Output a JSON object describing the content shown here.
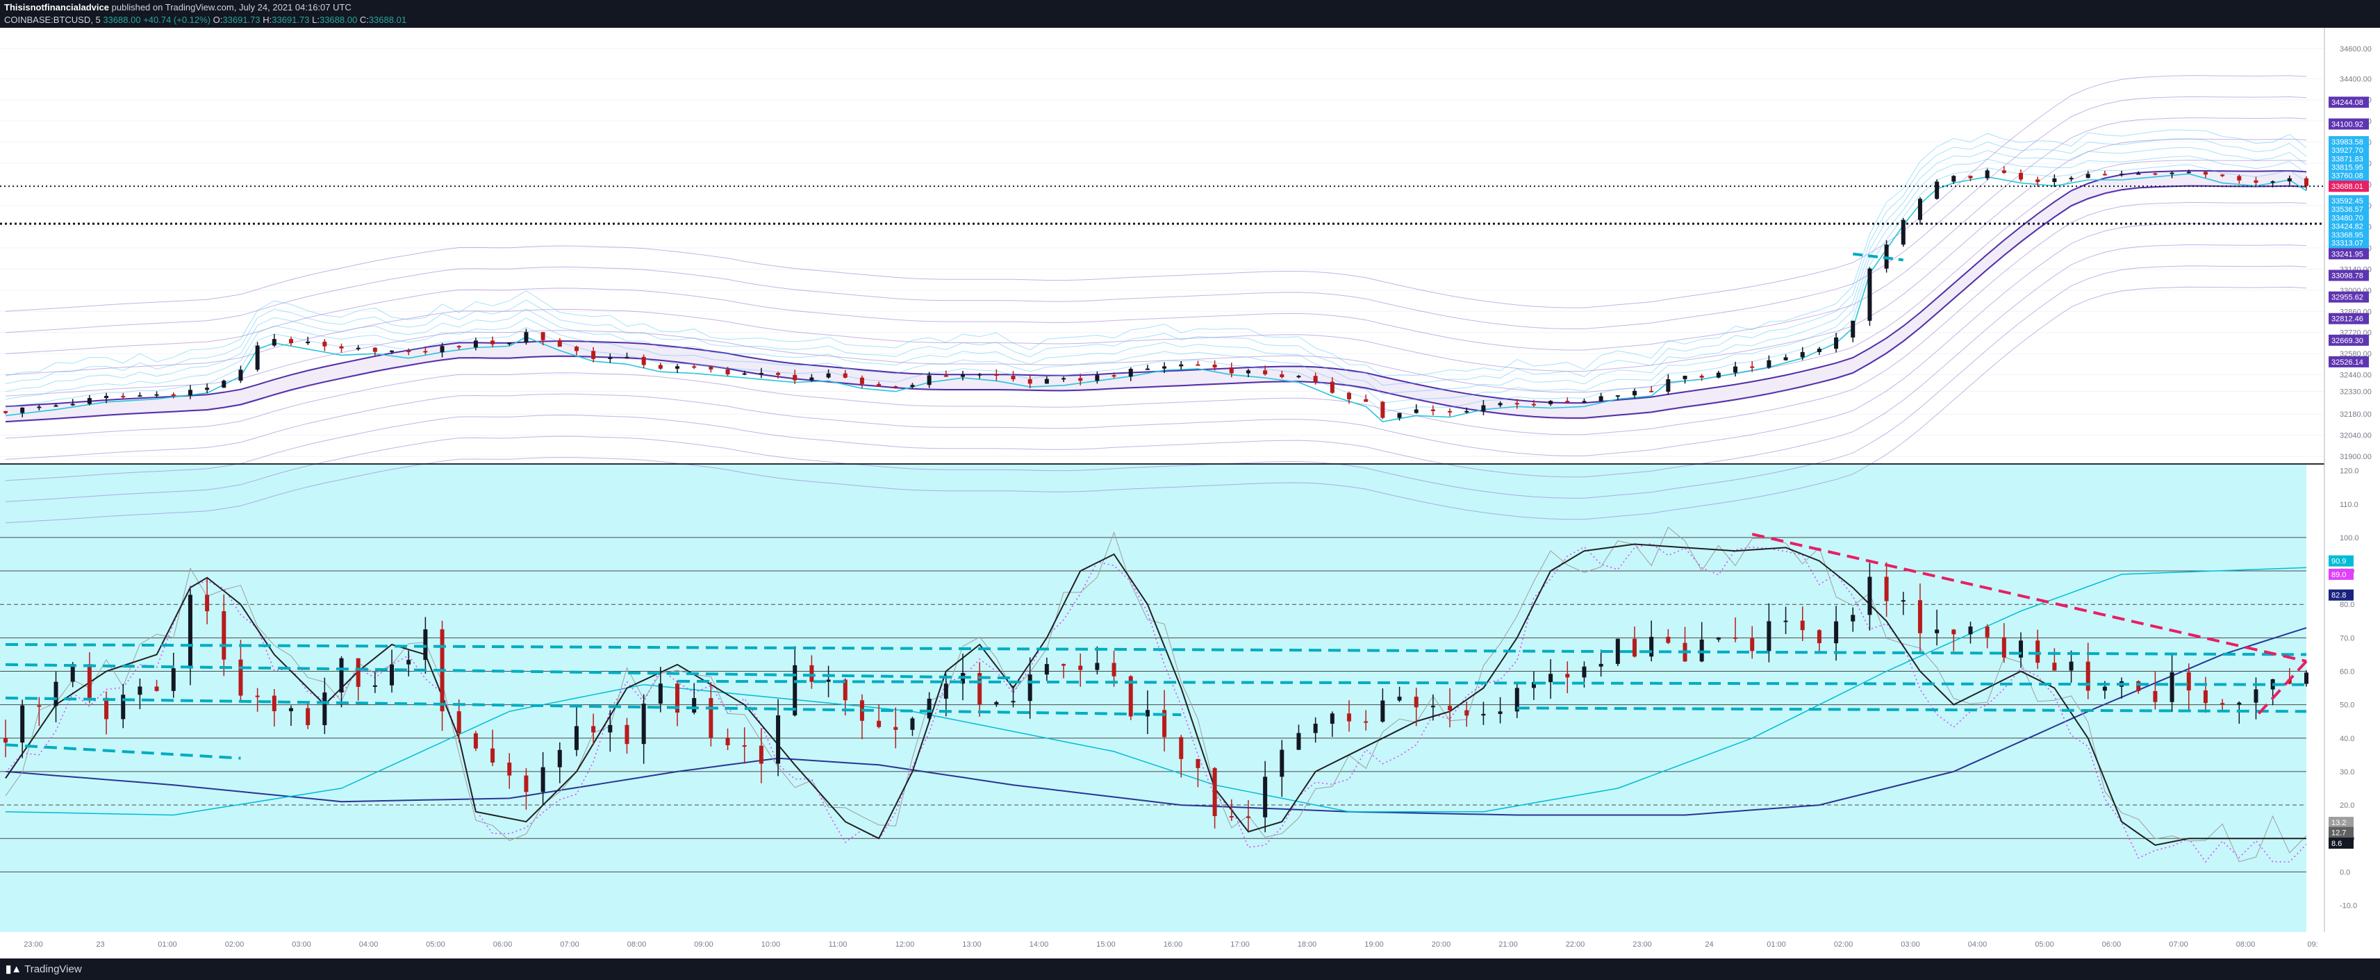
{
  "header": {
    "author": "Thisisnotfinancialadvice",
    "published": "published on TradingView.com, July 24, 2021 04:16:07 UTC",
    "symbol": "COINBASE:BTCUSD, 5",
    "ohlc": [
      {
        "label": "",
        "value": "33688.00"
      },
      {
        "label": "",
        "value": "+40.74 (+0.12%)"
      },
      {
        "label": "O:",
        "value": "33691.73"
      },
      {
        "label": "H:",
        "value": "33691.73"
      },
      {
        "label": "L:",
        "value": "33688.00"
      },
      {
        "label": "C:",
        "value": "33688.01"
      }
    ]
  },
  "footer": {
    "logo": "TradingView"
  },
  "colors": {
    "background": "#ffffff",
    "oscillator_bg": "#c6f7fb",
    "candle_up": "#131722",
    "candle_down": "#b71c1c",
    "price_badge": "#e91e63",
    "band_purple": "#7e57c2",
    "band_blue": "#4fc3f7",
    "trend_cyan": "#00acc1",
    "trend_pink": "#e91e63"
  },
  "chart_data": [
    {
      "type": "candlestick",
      "title": "COINBASE:BTCUSD, 5",
      "ylim": [
        31850,
        34700
      ],
      "y_ticks": [
        "34600.00",
        "34400.00",
        "34260.00",
        "34120.00",
        "33980.00",
        "33840.00",
        "33700.00",
        "33560.00",
        "33420.00",
        "33280.00",
        "33140.00",
        "33000.00",
        "32860.00",
        "32720.00",
        "32580.00",
        "32440.00",
        "32330.00",
        "32180.00",
        "32040.00",
        "31900.00"
      ],
      "x_ticks": [
        "23:00",
        "23",
        "01:00",
        "02:00",
        "03:00",
        "04:00",
        "05:00",
        "06:00",
        "07:00",
        "08:00",
        "09:00",
        "10:00",
        "11:00",
        "12:00",
        "13:00",
        "14:00",
        "15:00",
        "16:00",
        "17:00",
        "18:00",
        "19:00",
        "20:00",
        "21:00",
        "22:00",
        "23:00",
        "24",
        "01:00",
        "02:00",
        "03:00",
        "04:00",
        "05:00",
        "06:00",
        "07:00",
        "08:00",
        "09:"
      ],
      "close_path": [
        [
          0,
          32200
        ],
        [
          3,
          32240
        ],
        [
          6,
          32290
        ],
        [
          9,
          32310
        ],
        [
          12,
          32350
        ],
        [
          14,
          32460
        ],
        [
          15,
          32640
        ],
        [
          16,
          32680
        ],
        [
          18,
          32640
        ],
        [
          20,
          32600
        ],
        [
          22,
          32610
        ],
        [
          24,
          32580
        ],
        [
          26,
          32620
        ],
        [
          28,
          32650
        ],
        [
          30,
          32660
        ],
        [
          31,
          32720
        ],
        [
          33,
          32630
        ],
        [
          35,
          32560
        ],
        [
          37,
          32540
        ],
        [
          39,
          32490
        ],
        [
          41,
          32480
        ],
        [
          43,
          32460
        ],
        [
          45,
          32440
        ],
        [
          47,
          32420
        ],
        [
          49,
          32430
        ],
        [
          51,
          32380
        ],
        [
          53,
          32360
        ],
        [
          55,
          32420
        ],
        [
          57,
          32450
        ],
        [
          59,
          32430
        ],
        [
          61,
          32390
        ],
        [
          63,
          32400
        ],
        [
          65,
          32430
        ],
        [
          67,
          32460
        ],
        [
          69,
          32500
        ],
        [
          71,
          32510
        ],
        [
          73,
          32470
        ],
        [
          75,
          32450
        ],
        [
          77,
          32420
        ],
        [
          79,
          32330
        ],
        [
          81,
          32260
        ],
        [
          82,
          32160
        ],
        [
          84,
          32200
        ],
        [
          86,
          32190
        ],
        [
          88,
          32240
        ],
        [
          90,
          32260
        ],
        [
          92,
          32250
        ],
        [
          94,
          32260
        ],
        [
          96,
          32310
        ],
        [
          98,
          32330
        ],
        [
          99,
          32420
        ],
        [
          101,
          32440
        ],
        [
          103,
          32480
        ],
        [
          105,
          32520
        ],
        [
          107,
          32580
        ],
        [
          109,
          32680
        ],
        [
          110,
          32780
        ],
        [
          111,
          33140
        ],
        [
          112,
          33300
        ],
        [
          113,
          33460
        ],
        [
          114,
          33600
        ],
        [
          115,
          33700
        ],
        [
          116,
          33740
        ],
        [
          118,
          33780
        ],
        [
          120,
          33740
        ],
        [
          122,
          33720
        ],
        [
          124,
          33760
        ],
        [
          126,
          33760
        ],
        [
          128,
          33780
        ],
        [
          130,
          33800
        ],
        [
          132,
          33740
        ],
        [
          134,
          33720
        ],
        [
          136,
          33760
        ],
        [
          137,
          33688
        ]
      ],
      "markers": {
        "current_price": 33688.01,
        "current_label": "BTCUSD",
        "support_level": 33440
      },
      "right_labels": [
        {
          "value": "34244.08",
          "price": 34244,
          "color": "#5e35b1"
        },
        {
          "value": "34100.92",
          "price": 34100,
          "color": "#5e35b1"
        },
        {
          "value": "33983.58",
          "price": 33983,
          "color": "#29b6f6"
        },
        {
          "value": "33927.70",
          "price": 33927,
          "color": "#29b6f6"
        },
        {
          "value": "33871.83",
          "price": 33871,
          "color": "#29b6f6"
        },
        {
          "value": "33815.95",
          "price": 33815,
          "color": "#29b6f6"
        },
        {
          "value": "33760.08",
          "price": 33760,
          "color": "#29b6f6"
        },
        {
          "value": "33688.01",
          "price": 33688,
          "color": "#e91e63"
        },
        {
          "value": "33592.45",
          "price": 33592,
          "color": "#29b6f6"
        },
        {
          "value": "33536.57",
          "price": 33536,
          "color": "#29b6f6"
        },
        {
          "value": "33480.70",
          "price": 33480,
          "color": "#29b6f6"
        },
        {
          "value": "33424.82",
          "price": 33424,
          "color": "#29b6f6"
        },
        {
          "value": "33368.95",
          "price": 33368,
          "color": "#29b6f6"
        },
        {
          "value": "33313.07",
          "price": 33313,
          "color": "#29b6f6"
        },
        {
          "value": "33241.95",
          "price": 33241,
          "color": "#5e35b1"
        },
        {
          "value": "33098.78",
          "price": 33098,
          "color": "#5e35b1"
        },
        {
          "value": "32955.62",
          "price": 32955,
          "color": "#5e35b1"
        },
        {
          "value": "32812.46",
          "price": 32812,
          "color": "#5e35b1"
        },
        {
          "value": "32669.30",
          "price": 32669,
          "color": "#5e35b1"
        },
        {
          "value": "32526.14",
          "price": 32526,
          "color": "#5e35b1"
        }
      ]
    },
    {
      "type": "line",
      "title": "",
      "ylim": [
        -18,
        122
      ],
      "y_ticks": [
        "120.0",
        "110.0",
        "100.0",
        "90.0",
        "80.0",
        "70.0",
        "60.0",
        "50.0",
        "40.0",
        "30.0",
        "20.0",
        "10.0",
        "0.0",
        "-10.0"
      ],
      "hlines": [
        100,
        90,
        80,
        70,
        60,
        50,
        40,
        30,
        20,
        10,
        0
      ],
      "rsi_path": [
        [
          0,
          40
        ],
        [
          2,
          52
        ],
        [
          4,
          66
        ],
        [
          6,
          45
        ],
        [
          8,
          55
        ],
        [
          10,
          60
        ],
        [
          11,
          85
        ],
        [
          12,
          78
        ],
        [
          14,
          55
        ],
        [
          16,
          48
        ],
        [
          18,
          42
        ],
        [
          20,
          60
        ],
        [
          22,
          55
        ],
        [
          24,
          62
        ],
        [
          25,
          70
        ],
        [
          26,
          52
        ],
        [
          27,
          38
        ],
        [
          29,
          30
        ],
        [
          31,
          25
        ],
        [
          33,
          38
        ],
        [
          35,
          45
        ],
        [
          37,
          42
        ],
        [
          39,
          55
        ],
        [
          41,
          48
        ],
        [
          43,
          35
        ],
        [
          45,
          35
        ],
        [
          47,
          60
        ],
        [
          49,
          55
        ],
        [
          51,
          42
        ],
        [
          53,
          40
        ],
        [
          55,
          52
        ],
        [
          57,
          60
        ],
        [
          59,
          48
        ],
        [
          61,
          58
        ],
        [
          63,
          60
        ],
        [
          65,
          62
        ],
        [
          67,
          50
        ],
        [
          69,
          40
        ],
        [
          71,
          30
        ],
        [
          72,
          18
        ],
        [
          74,
          20
        ],
        [
          76,
          40
        ],
        [
          78,
          48
        ],
        [
          80,
          46
        ],
        [
          82,
          50
        ],
        [
          84,
          52
        ],
        [
          86,
          45
        ],
        [
          88,
          50
        ],
        [
          90,
          52
        ],
        [
          92,
          56
        ],
        [
          94,
          60
        ],
        [
          96,
          66
        ],
        [
          98,
          70
        ],
        [
          100,
          65
        ],
        [
          102,
          72
        ],
        [
          104,
          68
        ],
        [
          106,
          78
        ],
        [
          108,
          68
        ],
        [
          110,
          75
        ],
        [
          111,
          85
        ],
        [
          113,
          78
        ],
        [
          115,
          70
        ],
        [
          117,
          72
        ],
        [
          119,
          68
        ],
        [
          121,
          65
        ],
        [
          123,
          60
        ],
        [
          125,
          55
        ],
        [
          127,
          52
        ],
        [
          129,
          56
        ],
        [
          131,
          48
        ],
        [
          133,
          52
        ],
        [
          135,
          60
        ],
        [
          137,
          56
        ]
      ],
      "stoch_k": [
        [
          0,
          28
        ],
        [
          3,
          50
        ],
        [
          6,
          60
        ],
        [
          9,
          65
        ],
        [
          11,
          85
        ],
        [
          12,
          88
        ],
        [
          14,
          80
        ],
        [
          16,
          65
        ],
        [
          19,
          50
        ],
        [
          21,
          60
        ],
        [
          23,
          68
        ],
        [
          25,
          65
        ],
        [
          27,
          40
        ],
        [
          28,
          18
        ],
        [
          31,
          15
        ],
        [
          34,
          30
        ],
        [
          37,
          55
        ],
        [
          40,
          62
        ],
        [
          44,
          50
        ],
        [
          47,
          32
        ],
        [
          50,
          15
        ],
        [
          52,
          10
        ],
        [
          54,
          30
        ],
        [
          56,
          60
        ],
        [
          58,
          68
        ],
        [
          60,
          55
        ],
        [
          62,
          70
        ],
        [
          64,
          90
        ],
        [
          66,
          95
        ],
        [
          68,
          80
        ],
        [
          70,
          55
        ],
        [
          72,
          25
        ],
        [
          74,
          12
        ],
        [
          76,
          15
        ],
        [
          78,
          30
        ],
        [
          80,
          35
        ],
        [
          82,
          40
        ],
        [
          84,
          45
        ],
        [
          86,
          48
        ],
        [
          88,
          55
        ],
        [
          90,
          70
        ],
        [
          92,
          90
        ],
        [
          94,
          96
        ],
        [
          97,
          98
        ],
        [
          100,
          97
        ],
        [
          103,
          96
        ],
        [
          106,
          97
        ],
        [
          108,
          93
        ],
        [
          110,
          85
        ],
        [
          112,
          75
        ],
        [
          114,
          60
        ],
        [
          116,
          50
        ],
        [
          118,
          55
        ],
        [
          120,
          60
        ],
        [
          122,
          55
        ],
        [
          124,
          40
        ],
        [
          126,
          15
        ],
        [
          128,
          8
        ],
        [
          130,
          10
        ]
      ],
      "ema_blue": [
        [
          0,
          30
        ],
        [
          10,
          26
        ],
        [
          20,
          21
        ],
        [
          30,
          22
        ],
        [
          40,
          30
        ],
        [
          46,
          34
        ],
        [
          52,
          32
        ],
        [
          60,
          26
        ],
        [
          70,
          20
        ],
        [
          80,
          18
        ],
        [
          90,
          17
        ],
        [
          100,
          17
        ],
        [
          108,
          20
        ],
        [
          116,
          30
        ],
        [
          124,
          48
        ],
        [
          132,
          65
        ],
        [
          137,
          73
        ]
      ],
      "ema_cyan": [
        [
          0,
          18
        ],
        [
          10,
          17
        ],
        [
          20,
          25
        ],
        [
          30,
          48
        ],
        [
          38,
          56
        ],
        [
          46,
          52
        ],
        [
          54,
          48
        ],
        [
          60,
          42
        ],
        [
          66,
          36
        ],
        [
          72,
          26
        ],
        [
          80,
          18
        ],
        [
          88,
          18
        ],
        [
          96,
          25
        ],
        [
          104,
          40
        ],
        [
          112,
          60
        ],
        [
          120,
          78
        ],
        [
          126,
          89
        ],
        [
          137,
          91
        ]
      ],
      "right_labels": [
        {
          "value": "90.9",
          "level": 93,
          "color": "#00bcd4"
        },
        {
          "value": "89.0",
          "level": 89,
          "color": "#e040fb"
        },
        {
          "value": "82.8",
          "level": 82.8,
          "color": "#1a237e"
        },
        {
          "value": "13.2",
          "level": 14.8,
          "color": "#9e9e9e"
        },
        {
          "value": "12.7",
          "level": 11.8,
          "color": "#616161"
        },
        {
          "value": "8.6",
          "level": 8.6,
          "color": "#131722"
        }
      ]
    }
  ]
}
